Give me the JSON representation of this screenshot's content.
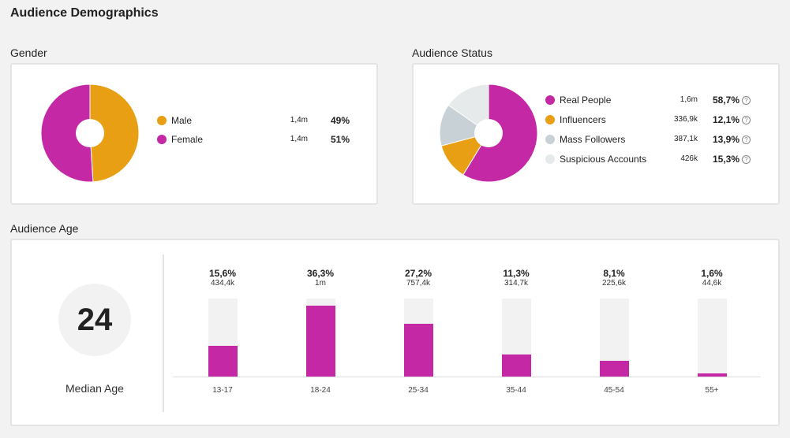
{
  "title": "Audience Demographics",
  "colors": {
    "magenta": "#c428a5",
    "orange": "#e89f13",
    "gray": "#c8d2d6",
    "lightgray": "#e6eaeb",
    "track": "#f1f2f1"
  },
  "gender": {
    "label": "Gender",
    "items": [
      {
        "name": "Male",
        "count": "1,4m",
        "percent": "49%",
        "value": 49,
        "color": "#e89f13"
      },
      {
        "name": "Female",
        "count": "1,4m",
        "percent": "51%",
        "value": 51,
        "color": "#c428a5"
      }
    ]
  },
  "status": {
    "label": "Audience Status",
    "help_icon": "question-circle-icon",
    "items": [
      {
        "name": "Real People",
        "count": "1,6m",
        "percent": "58,7%",
        "value": 58.7,
        "color": "#c428a5"
      },
      {
        "name": "Influencers",
        "count": "336,9k",
        "percent": "12,1%",
        "value": 12.1,
        "color": "#e89f13"
      },
      {
        "name": "Mass Followers",
        "count": "387,1k",
        "percent": "13,9%",
        "value": 13.9,
        "color": "#c8d2d6"
      },
      {
        "name": "Suspicious Accounts",
        "count": "426k",
        "percent": "15,3%",
        "value": 15.3,
        "color": "#e6eaeb"
      }
    ]
  },
  "age": {
    "label": "Audience Age",
    "median": "24",
    "median_label": "Median Age",
    "chart_data": {
      "type": "bar",
      "ylim": [
        0,
        40
      ],
      "categories": [
        "13-17",
        "18-24",
        "25-34",
        "35-44",
        "45-54",
        "55+"
      ],
      "values": [
        15.6,
        36.3,
        27.2,
        11.3,
        8.1,
        1.6
      ],
      "percent_labels": [
        "15,6%",
        "36,3%",
        "27,2%",
        "11,3%",
        "8,1%",
        "1,6%"
      ],
      "count_labels": [
        "434,4k",
        "1m",
        "757,4k",
        "314,7k",
        "225,6k",
        "44,6k"
      ]
    }
  }
}
